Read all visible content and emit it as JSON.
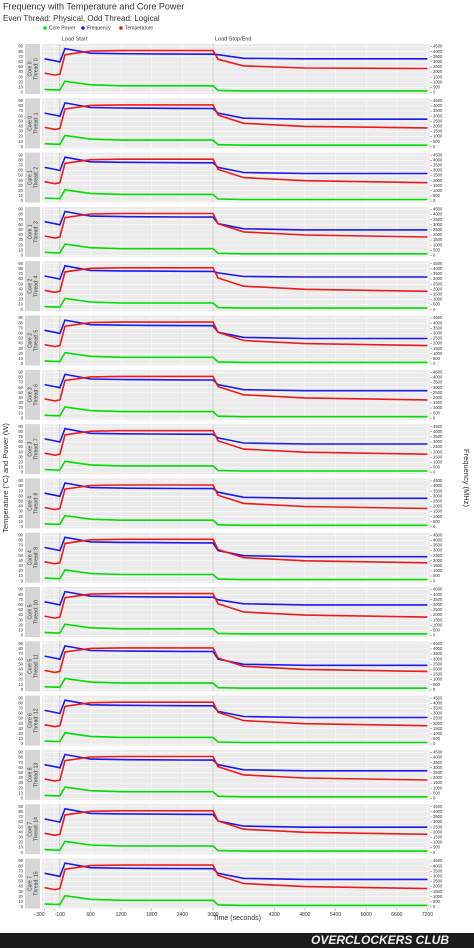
{
  "chart_data": {
    "type": "line",
    "title": "Frequency with Temperature and Core Power",
    "subtitle": "Even Thread: Physical, Odd Thread: Logical",
    "xlabel": "Time (seconds)",
    "ylabel": "Temperature (°C) and Power (W)",
    "y2label": "Frequency (MHz)",
    "watermark": "OVERCLOCKERS CLUB",
    "series": [
      {
        "name": "Core Power",
        "color": "#00dd00",
        "axis": "y"
      },
      {
        "name": "Frequency",
        "color": "#1a1aee",
        "axis": "y2"
      },
      {
        "name": "Temperature",
        "color": "#ee1a1a",
        "axis": "y"
      }
    ],
    "annotations": [
      {
        "text": "Load Start",
        "x": 0
      },
      {
        "text": "Load Stop/End",
        "x": 3000
      }
    ],
    "x": [
      -300,
      -100,
      0,
      100,
      600,
      1200,
      1800,
      2400,
      3000,
      3100,
      3600,
      4800,
      7200
    ],
    "xlim": [
      -350,
      7250
    ],
    "xticks": [
      -300,
      -100,
      600,
      1200,
      1800,
      2400,
      3000,
      4200,
      4800,
      5400,
      6000,
      6600,
      7200
    ],
    "ylim": [
      -3,
      95
    ],
    "yticks": [
      0,
      10,
      20,
      30,
      40,
      50,
      60,
      70,
      80,
      90
    ],
    "y2lim": [
      -150,
      4750
    ],
    "y2ticks": [
      0,
      500,
      1000,
      1500,
      2000,
      2500,
      3000,
      3500,
      4000,
      4500
    ],
    "panels": [
      {
        "core": "Core 0",
        "thread": "Thread: 0",
        "values": [
          [
            6,
            5,
            5,
            22,
            15,
            13,
            13,
            13,
            13,
            4,
            3,
            3,
            3
          ],
          [
            3300,
            3100,
            3000,
            4300,
            3850,
            3800,
            3780,
            3760,
            3750,
            3700,
            3350,
            3300,
            3300
          ],
          [
            38,
            34,
            36,
            74,
            81,
            82,
            82,
            82,
            82,
            65,
            52,
            48,
            47
          ]
        ]
      },
      {
        "core": "Core 0",
        "thread": "Thread: 1",
        "values": [
          [
            6,
            5,
            5,
            22,
            15,
            13,
            13,
            13,
            13,
            4,
            3,
            3,
            3
          ],
          [
            3300,
            3100,
            3000,
            4300,
            3850,
            3800,
            3780,
            3760,
            3750,
            3300,
            2800,
            2700,
            2700
          ],
          [
            38,
            34,
            36,
            74,
            81,
            82,
            82,
            82,
            82,
            62,
            46,
            40,
            37
          ]
        ]
      },
      {
        "core": "Core 1",
        "thread": "Thread: 2",
        "values": [
          [
            6,
            5,
            5,
            22,
            15,
            13,
            13,
            13,
            13,
            4,
            3,
            3,
            3
          ],
          [
            3300,
            3100,
            3000,
            4300,
            3850,
            3800,
            3780,
            3760,
            3750,
            3300,
            2800,
            2700,
            2700
          ],
          [
            38,
            34,
            36,
            74,
            81,
            82,
            82,
            82,
            82,
            62,
            46,
            40,
            36
          ]
        ]
      },
      {
        "core": "Core 1",
        "thread": "Thread: 3",
        "values": [
          [
            6,
            5,
            5,
            22,
            15,
            13,
            13,
            13,
            13,
            4,
            3,
            3,
            3
          ],
          [
            3300,
            3100,
            3000,
            4300,
            3850,
            3800,
            3780,
            3760,
            3750,
            3100,
            2600,
            2500,
            2500
          ],
          [
            38,
            34,
            36,
            74,
            81,
            82,
            82,
            82,
            82,
            62,
            46,
            40,
            36
          ]
        ]
      },
      {
        "core": "Core 2",
        "thread": "Thread: 4",
        "values": [
          [
            6,
            5,
            5,
            22,
            15,
            13,
            13,
            13,
            13,
            4,
            3,
            3,
            3
          ],
          [
            3300,
            3100,
            3000,
            4300,
            3850,
            3800,
            3780,
            3760,
            3750,
            3600,
            3250,
            3200,
            3200
          ],
          [
            38,
            34,
            36,
            74,
            81,
            82,
            82,
            82,
            82,
            62,
            46,
            40,
            36
          ]
        ]
      },
      {
        "core": "Core 2",
        "thread": "Thread: 5",
        "values": [
          [
            6,
            5,
            5,
            22,
            15,
            13,
            13,
            13,
            13,
            4,
            3,
            3,
            3
          ],
          [
            3300,
            3100,
            3000,
            4300,
            3850,
            3800,
            3780,
            3760,
            3750,
            3100,
            2600,
            2500,
            2500
          ],
          [
            38,
            34,
            36,
            74,
            81,
            82,
            82,
            82,
            82,
            62,
            46,
            40,
            36
          ]
        ]
      },
      {
        "core": "Core 3",
        "thread": "Thread: 6",
        "values": [
          [
            6,
            5,
            5,
            22,
            15,
            13,
            13,
            13,
            13,
            4,
            3,
            3,
            3
          ],
          [
            3300,
            3100,
            3000,
            4300,
            3850,
            3800,
            3780,
            3760,
            3750,
            3300,
            2800,
            2700,
            2700
          ],
          [
            38,
            34,
            36,
            74,
            81,
            82,
            82,
            82,
            82,
            62,
            46,
            40,
            36
          ]
        ]
      },
      {
        "core": "Core 3",
        "thread": "Thread: 7",
        "values": [
          [
            6,
            5,
            5,
            22,
            15,
            13,
            13,
            13,
            13,
            4,
            3,
            3,
            3
          ],
          [
            3300,
            3100,
            3000,
            4300,
            3850,
            3800,
            3780,
            3760,
            3750,
            3400,
            2900,
            2800,
            2800
          ],
          [
            38,
            34,
            36,
            74,
            81,
            82,
            82,
            82,
            82,
            62,
            46,
            40,
            36
          ]
        ]
      },
      {
        "core": "Core 4",
        "thread": "Thread: 8",
        "values": [
          [
            6,
            5,
            5,
            22,
            15,
            13,
            13,
            13,
            13,
            4,
            3,
            3,
            3
          ],
          [
            3300,
            3100,
            3000,
            4300,
            3850,
            3800,
            3780,
            3760,
            3750,
            3400,
            2900,
            2800,
            2800
          ],
          [
            38,
            34,
            36,
            74,
            81,
            82,
            82,
            82,
            82,
            62,
            46,
            40,
            36
          ]
        ]
      },
      {
        "core": "Core 4",
        "thread": "Thread: 9",
        "values": [
          [
            6,
            5,
            5,
            22,
            15,
            13,
            13,
            13,
            13,
            4,
            3,
            3,
            3
          ],
          [
            3300,
            3100,
            3000,
            4300,
            3850,
            3800,
            3780,
            3760,
            3750,
            3000,
            2500,
            2400,
            2400
          ],
          [
            38,
            34,
            36,
            74,
            81,
            82,
            82,
            82,
            82,
            62,
            46,
            40,
            36
          ]
        ]
      },
      {
        "core": "Core 5",
        "thread": "Thread: 10",
        "values": [
          [
            6,
            5,
            5,
            22,
            15,
            13,
            13,
            13,
            13,
            4,
            3,
            3,
            3
          ],
          [
            3300,
            3100,
            3000,
            4300,
            3850,
            3800,
            3780,
            3760,
            3750,
            3500,
            3100,
            3000,
            3000
          ],
          [
            38,
            34,
            36,
            74,
            81,
            82,
            82,
            82,
            82,
            62,
            46,
            40,
            36
          ]
        ]
      },
      {
        "core": "Core 5",
        "thread": "Thread: 11",
        "values": [
          [
            6,
            5,
            5,
            22,
            15,
            13,
            13,
            13,
            13,
            4,
            3,
            3,
            3
          ],
          [
            3300,
            3100,
            3000,
            4300,
            3850,
            3800,
            3780,
            3760,
            3750,
            3000,
            2500,
            2400,
            2400
          ],
          [
            38,
            34,
            36,
            74,
            81,
            82,
            82,
            82,
            82,
            62,
            46,
            40,
            36
          ]
        ]
      },
      {
        "core": "Core 6",
        "thread": "Thread: 12",
        "values": [
          [
            6,
            5,
            5,
            22,
            15,
            13,
            13,
            13,
            13,
            4,
            3,
            3,
            3
          ],
          [
            3300,
            3100,
            3000,
            4300,
            3850,
            3800,
            3780,
            3760,
            3750,
            3200,
            2700,
            2600,
            2600
          ],
          [
            38,
            34,
            36,
            74,
            81,
            82,
            82,
            82,
            82,
            62,
            46,
            40,
            36
          ]
        ]
      },
      {
        "core": "Core 6",
        "thread": "Thread: 13",
        "values": [
          [
            6,
            5,
            5,
            22,
            15,
            13,
            13,
            13,
            13,
            4,
            3,
            3,
            3
          ],
          [
            3300,
            3100,
            3000,
            4300,
            3850,
            3800,
            3780,
            3760,
            3750,
            3300,
            2800,
            2700,
            2700
          ],
          [
            38,
            34,
            36,
            74,
            81,
            82,
            82,
            82,
            82,
            62,
            46,
            40,
            36
          ]
        ]
      },
      {
        "core": "Core 7",
        "thread": "Thread: 14",
        "values": [
          [
            6,
            5,
            5,
            22,
            15,
            13,
            13,
            13,
            13,
            4,
            3,
            3,
            3
          ],
          [
            3300,
            3100,
            3000,
            4300,
            3850,
            3800,
            3780,
            3760,
            3750,
            3100,
            2600,
            2500,
            2500
          ],
          [
            38,
            34,
            36,
            74,
            81,
            82,
            82,
            82,
            82,
            62,
            46,
            40,
            36
          ]
        ]
      },
      {
        "core": "Core 7",
        "thread": "Thread: 15",
        "values": [
          [
            6,
            5,
            5,
            22,
            15,
            13,
            13,
            13,
            13,
            4,
            3,
            3,
            3
          ],
          [
            3300,
            3100,
            3000,
            4300,
            3850,
            3800,
            3780,
            3760,
            3750,
            3300,
            2800,
            2700,
            2700
          ],
          [
            38,
            34,
            36,
            74,
            81,
            82,
            82,
            82,
            82,
            62,
            46,
            40,
            36
          ]
        ]
      }
    ]
  }
}
